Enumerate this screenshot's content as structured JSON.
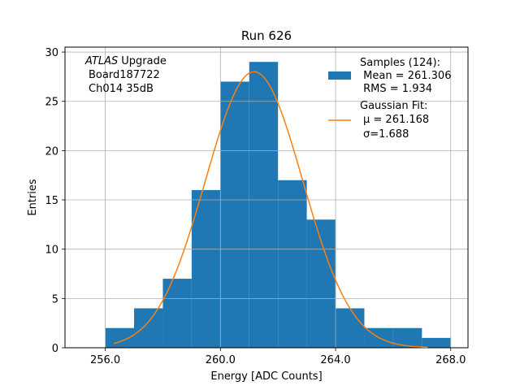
{
  "chart_data": {
    "type": "bar",
    "title": "Run 626",
    "xlabel": "Energy [ADC Counts]",
    "ylabel": "Entries",
    "xlim": [
      254.6,
      268.6
    ],
    "ylim": [
      0,
      30.5
    ],
    "xticks": [
      256,
      260,
      264,
      268
    ],
    "xtick_labels": [
      "256.0",
      "260.0",
      "264.0",
      "268.0"
    ],
    "yticks": [
      0,
      5,
      10,
      15,
      20,
      25,
      30
    ],
    "ytick_labels": [
      "0",
      "5",
      "10",
      "15",
      "20",
      "25",
      "30"
    ],
    "grid": true,
    "bar_color": "#1f77b4",
    "fit_color": "#ff7f0e",
    "bin_edges": [
      256,
      257,
      258,
      259,
      260,
      261,
      262,
      263,
      264,
      265,
      266,
      267,
      268
    ],
    "counts": [
      2,
      4,
      7,
      16,
      27,
      29,
      17,
      13,
      4,
      2,
      2,
      1
    ],
    "fit": {
      "mu": 261.168,
      "sigma": 1.688,
      "amplitude": 28,
      "x_range": [
        256.3,
        267.2
      ]
    },
    "annotation_lines": [
      "Upgrade",
      "Board187722",
      "Ch014 35dB"
    ],
    "annotation_italic": "ATLAS",
    "legend": {
      "placement": "top-right",
      "entries": [
        {
          "kind": "bar",
          "lines": [
            "Samples (124):",
            " Mean = 261.306",
            " RMS = 1.934"
          ]
        },
        {
          "kind": "line",
          "lines": [
            "Gaussian Fit:",
            "μ = 261.168",
            "σ=1.688"
          ]
        }
      ]
    }
  }
}
